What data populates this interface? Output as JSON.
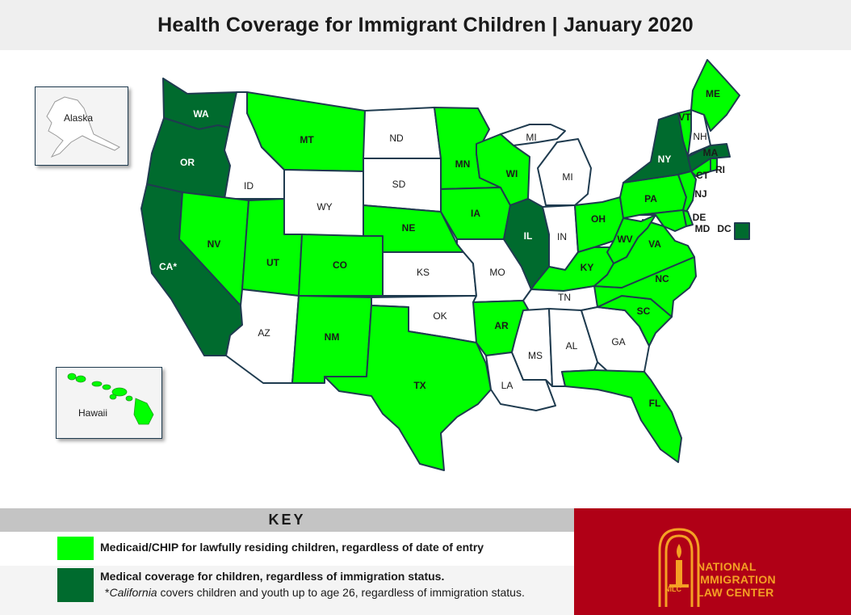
{
  "title": "Health Coverage for Immigrant Children  |  January 2020",
  "colors": {
    "light": "#00ff00",
    "dark": "#006b2e",
    "none": "#ffffff",
    "border": "#1f3b4f",
    "logo_bg": "#b00016",
    "logo_fg": "#f4a024"
  },
  "legend": {
    "header": "KEY",
    "items": [
      {
        "category": "light",
        "text": "Medicaid/CHIP for lawfully residing children, regardless of date of entry"
      },
      {
        "category": "dark",
        "text": "Medical coverage for children, regardless of immigration status.",
        "note_emphasis": "California",
        "note_prefix": "*",
        "note_rest": " covers children and youth up to age 26, regardless of immigration status."
      }
    ]
  },
  "insets": {
    "alaska": "Alaska",
    "hawaii": "Hawaii"
  },
  "logo": {
    "line1": "NATIONAL",
    "line2": "IMMIGRATION",
    "line3": "LAW CENTER",
    "badge": "NILC"
  },
  "states": [
    {
      "abbr": "WA",
      "category": "dark"
    },
    {
      "abbr": "OR",
      "category": "dark"
    },
    {
      "abbr": "CA*",
      "category": "dark"
    },
    {
      "abbr": "ID",
      "category": "none"
    },
    {
      "abbr": "NV",
      "category": "light"
    },
    {
      "abbr": "MT",
      "category": "light"
    },
    {
      "abbr": "WY",
      "category": "none"
    },
    {
      "abbr": "UT",
      "category": "light"
    },
    {
      "abbr": "AZ",
      "category": "none"
    },
    {
      "abbr": "CO",
      "category": "light"
    },
    {
      "abbr": "NM",
      "category": "light"
    },
    {
      "abbr": "ND",
      "category": "none"
    },
    {
      "abbr": "SD",
      "category": "none"
    },
    {
      "abbr": "NE",
      "category": "light"
    },
    {
      "abbr": "KS",
      "category": "none"
    },
    {
      "abbr": "OK",
      "category": "none"
    },
    {
      "abbr": "TX",
      "category": "light"
    },
    {
      "abbr": "MN",
      "category": "light"
    },
    {
      "abbr": "IA",
      "category": "light"
    },
    {
      "abbr": "MO",
      "category": "none"
    },
    {
      "abbr": "AR",
      "category": "light"
    },
    {
      "abbr": "LA",
      "category": "none"
    },
    {
      "abbr": "WI",
      "category": "light"
    },
    {
      "abbr": "IL",
      "category": "dark"
    },
    {
      "abbr": "MI",
      "category": "none"
    },
    {
      "abbr": "IN",
      "category": "none"
    },
    {
      "abbr": "OH",
      "category": "light"
    },
    {
      "abbr": "KY",
      "category": "light"
    },
    {
      "abbr": "TN",
      "category": "none"
    },
    {
      "abbr": "MS",
      "category": "none"
    },
    {
      "abbr": "AL",
      "category": "none"
    },
    {
      "abbr": "GA",
      "category": "none"
    },
    {
      "abbr": "FL",
      "category": "light"
    },
    {
      "abbr": "SC",
      "category": "light"
    },
    {
      "abbr": "NC",
      "category": "light"
    },
    {
      "abbr": "VA",
      "category": "light"
    },
    {
      "abbr": "WV",
      "category": "light"
    },
    {
      "abbr": "PA",
      "category": "light"
    },
    {
      "abbr": "NY",
      "category": "dark"
    },
    {
      "abbr": "VT",
      "category": "light"
    },
    {
      "abbr": "NH",
      "category": "none"
    },
    {
      "abbr": "ME",
      "category": "light"
    },
    {
      "abbr": "MA",
      "category": "dark"
    },
    {
      "abbr": "RI",
      "category": "light"
    },
    {
      "abbr": "CT",
      "category": "light"
    },
    {
      "abbr": "NJ",
      "category": "light"
    },
    {
      "abbr": "DE",
      "category": "light"
    },
    {
      "abbr": "MD",
      "category": "light"
    },
    {
      "abbr": "DC",
      "category": "dark"
    },
    {
      "abbr": "MI",
      "category": "none"
    }
  ]
}
